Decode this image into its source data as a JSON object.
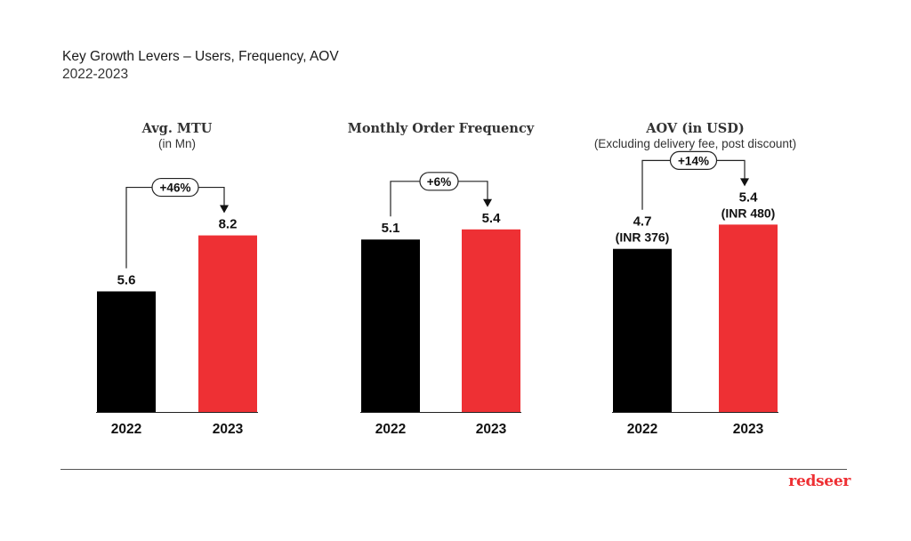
{
  "header": {
    "title": "Key Growth Levers – Users, Frequency, AOV",
    "subtitle": "2022-2023"
  },
  "colors": {
    "bar_2022": "#000000",
    "bar_2023": "#ee3034",
    "accent": "#ee3034",
    "text": "#111111"
  },
  "chart_data": [
    {
      "type": "bar",
      "title": "Avg. MTU",
      "subtitle": "(in Mn)",
      "categories": [
        "2022",
        "2023"
      ],
      "values": [
        5.6,
        8.2
      ],
      "value_labels": [
        "5.6",
        "8.2"
      ],
      "growth_label": "+46%"
    },
    {
      "type": "bar",
      "title": "Monthly Order Frequency",
      "subtitle": "",
      "categories": [
        "2022",
        "2023"
      ],
      "values": [
        5.1,
        5.4
      ],
      "value_labels": [
        "5.1",
        "5.4"
      ],
      "growth_label": "+6%"
    },
    {
      "type": "bar",
      "title": "AOV (in USD)",
      "subtitle": "(Excluding delivery fee, post discount)",
      "categories": [
        "2022",
        "2023"
      ],
      "values": [
        4.7,
        5.4
      ],
      "value_labels": [
        "4.7",
        "5.4"
      ],
      "value_sublabels": [
        "(INR 376)",
        "(INR 480)"
      ],
      "growth_label": "+14%"
    }
  ],
  "footer": {
    "logo_text": "redseer"
  }
}
